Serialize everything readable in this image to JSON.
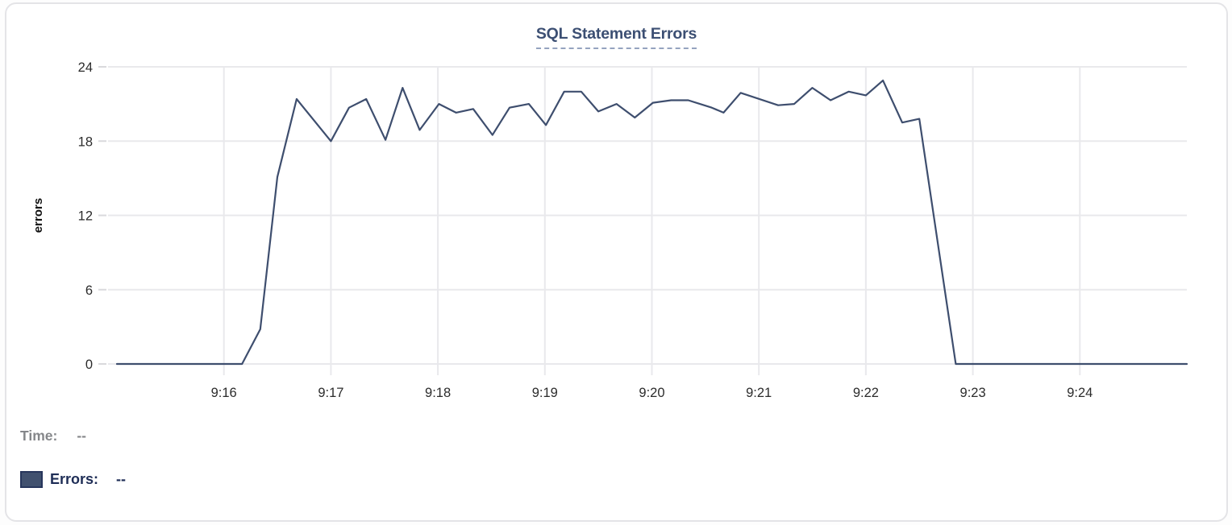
{
  "chart_data": {
    "type": "line",
    "title": "SQL Statement Errors",
    "xlabel": "",
    "ylabel": "errors",
    "series_name": "Errors",
    "x_tick_labels": [
      "9:16",
      "9:17",
      "9:18",
      "9:19",
      "9:20",
      "9:21",
      "9:22",
      "9:23",
      "9:24"
    ],
    "x_tick_minutes": [
      16,
      17,
      18,
      19,
      20,
      21,
      22,
      23,
      24
    ],
    "y_ticks": [
      0,
      6,
      12,
      18,
      24
    ],
    "ylim": [
      0,
      24
    ],
    "xlim_minutes": [
      14.97,
      25.0
    ],
    "grid": true,
    "legend_position": "none",
    "line_color": "#3e4e6e",
    "grid_color": "#e9e9ec",
    "tick_color": "#d9d9dc",
    "axis_text_color": "#2b2b2b",
    "points": [
      [
        15.0,
        0
      ],
      [
        16.17,
        0
      ],
      [
        16.34,
        2.8
      ],
      [
        16.5,
        15.1
      ],
      [
        16.68,
        21.4
      ],
      [
        17.0,
        18.0
      ],
      [
        17.17,
        20.7
      ],
      [
        17.33,
        21.4
      ],
      [
        17.51,
        18.1
      ],
      [
        17.67,
        22.3
      ],
      [
        17.83,
        18.9
      ],
      [
        18.01,
        21.0
      ],
      [
        18.17,
        20.3
      ],
      [
        18.33,
        20.6
      ],
      [
        18.51,
        18.5
      ],
      [
        18.67,
        20.7
      ],
      [
        18.85,
        21.0
      ],
      [
        19.01,
        19.3
      ],
      [
        19.18,
        22.0
      ],
      [
        19.34,
        22.0
      ],
      [
        19.5,
        20.4
      ],
      [
        19.67,
        21.0
      ],
      [
        19.84,
        19.9
      ],
      [
        20.01,
        21.1
      ],
      [
        20.18,
        21.3
      ],
      [
        20.34,
        21.3
      ],
      [
        20.56,
        20.7
      ],
      [
        20.67,
        20.3
      ],
      [
        20.83,
        21.9
      ],
      [
        21.18,
        20.9
      ],
      [
        21.33,
        21.0
      ],
      [
        21.5,
        22.3
      ],
      [
        21.67,
        21.3
      ],
      [
        21.84,
        22.0
      ],
      [
        22.0,
        21.7
      ],
      [
        22.16,
        22.9
      ],
      [
        22.34,
        19.5
      ],
      [
        22.5,
        19.8
      ],
      [
        22.84,
        0
      ],
      [
        25.0,
        0
      ]
    ]
  },
  "tooltip": {
    "time_label": "Time:",
    "time_value": "--",
    "errors_label": "Errors:",
    "errors_value": "--",
    "swatch_color": "#41516f"
  },
  "colors": {
    "title": "#3c4f73",
    "title_underline": "#95a3bf",
    "line": "#3e4e6e",
    "card_border": "#e4e4e7",
    "time_text": "#85878a",
    "errors_text": "#1e2d56"
  }
}
